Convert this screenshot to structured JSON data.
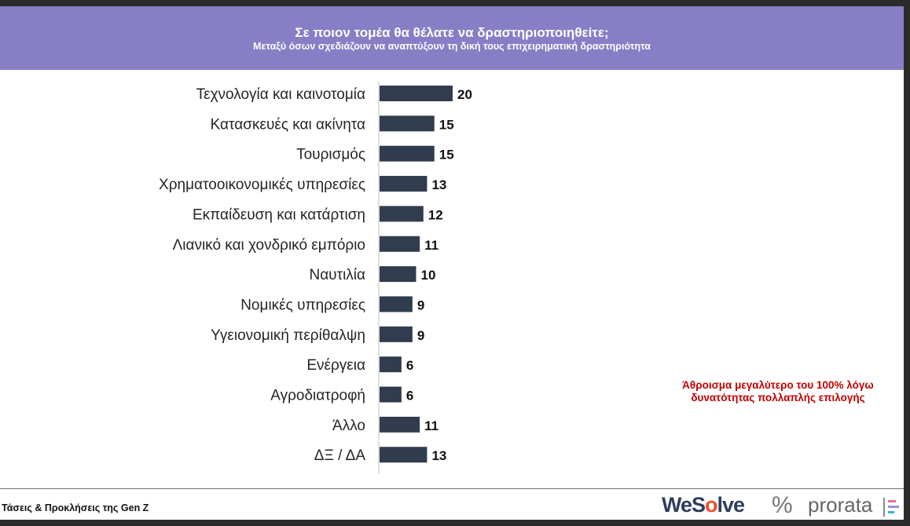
{
  "header": {
    "title": "Σε ποιον τομέα θα θέλατε να δραστηριοποιηθείτε;",
    "subtitle": "Μεταξύ όσων σχεδιάζουν να αναπτύξουν τη δική τους επιχειρηματική δραστηριότητα"
  },
  "chart_data": {
    "type": "bar",
    "orientation": "horizontal",
    "categories": [
      "Τεχνολογία και καινοτομία",
      "Κατασκευές και ακίνητα",
      "Τουρισμός",
      "Χρηματοοικονομικές υπηρεσίες",
      "Εκπαίδευση και κατάρτιση",
      "Λιανικό και χονδρικό εμπόριο",
      "Ναυτιλία",
      "Νομικές υπηρεσίες",
      "Υγειονομική περίθαλψη",
      "Ενέργεια",
      "Αγροδιατροφή",
      "Άλλο",
      "ΔΞ / ΔΑ"
    ],
    "values": [
      20,
      15,
      15,
      13,
      12,
      11,
      10,
      9,
      9,
      6,
      6,
      11,
      13
    ],
    "bar_color": "#323c4f",
    "xlim": [
      0,
      20
    ],
    "grid": false,
    "data_labels": true
  },
  "note": "Άθροισμα μεγαλύτερο του 100% λόγω δυνατότητας πολλαπλής επιλογής",
  "footer": {
    "text": "Τάσεις & Προκλήσεις της Gen Z",
    "logos": {
      "wesolve_main": "WeS",
      "wesolve_accent": "o",
      "wesolve_end": "lve",
      "percent": "%",
      "prorata": "prorata"
    }
  },
  "colors": {
    "header_bg": "#877ec6",
    "note_red": "#c00000",
    "wesolve_orange": "#f04e23",
    "wesolve_navy": "#2e3d60"
  }
}
